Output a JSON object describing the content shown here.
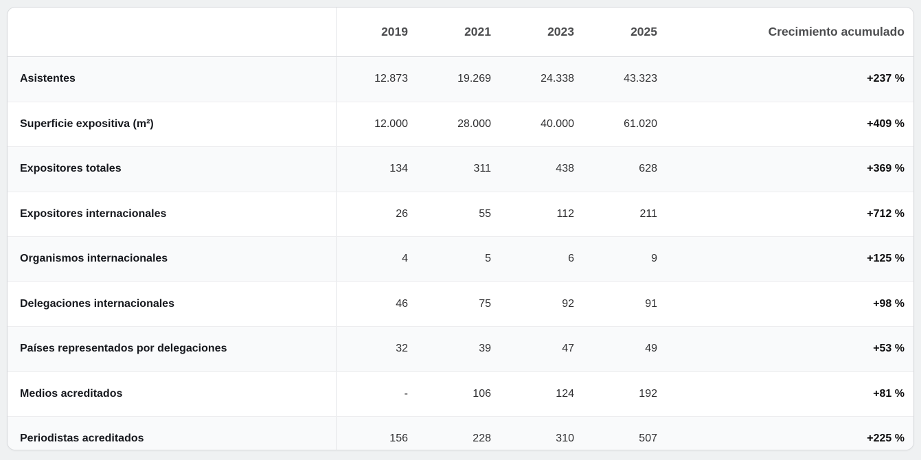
{
  "table": {
    "columns": [
      "",
      "2019",
      "2021",
      "2023",
      "2025",
      "Crecimiento acumulado"
    ],
    "rows": [
      {
        "label": "Asistentes",
        "values": [
          "12.873",
          "19.269",
          "24.338",
          "43.323"
        ],
        "growth": "+237 %"
      },
      {
        "label": "Superficie expositiva (m²)",
        "values": [
          "12.000",
          "28.000",
          "40.000",
          "61.020"
        ],
        "growth": "+409 %"
      },
      {
        "label": "Expositores totales",
        "values": [
          "134",
          "311",
          "438",
          "628"
        ],
        "growth": "+369 %"
      },
      {
        "label": "Expositores internacionales",
        "values": [
          "26",
          "55",
          "112",
          "211"
        ],
        "growth": "+712 %"
      },
      {
        "label": "Organismos internacionales",
        "values": [
          "4",
          "5",
          "6",
          "9"
        ],
        "growth": "+125 %"
      },
      {
        "label": "Delegaciones internacionales",
        "values": [
          "46",
          "75",
          "92",
          "91"
        ],
        "growth": "+98 %"
      },
      {
        "label": "Países representados por delegaciones",
        "values": [
          "32",
          "39",
          "47",
          "49"
        ],
        "growth": "+53 %"
      },
      {
        "label": "Medios acreditados",
        "values": [
          "-",
          "106",
          "124",
          "192"
        ],
        "growth": "+81 %"
      },
      {
        "label": "Periodistas acreditados",
        "values": [
          "156",
          "228",
          "310",
          "507"
        ],
        "growth": "+225 %"
      }
    ]
  },
  "chart_data": {
    "type": "table",
    "categories": [
      "2019",
      "2021",
      "2023",
      "2025"
    ],
    "growth_column_label": "Crecimiento acumulado",
    "series": [
      {
        "name": "Asistentes",
        "values": [
          12873,
          19269,
          24338,
          43323
        ],
        "growth_pct": 237
      },
      {
        "name": "Superficie expositiva (m²)",
        "values": [
          12000,
          28000,
          40000,
          61020
        ],
        "growth_pct": 409
      },
      {
        "name": "Expositores totales",
        "values": [
          134,
          311,
          438,
          628
        ],
        "growth_pct": 369
      },
      {
        "name": "Expositores internacionales",
        "values": [
          26,
          55,
          112,
          211
        ],
        "growth_pct": 712
      },
      {
        "name": "Organismos internacionales",
        "values": [
          4,
          5,
          6,
          9
        ],
        "growth_pct": 125
      },
      {
        "name": "Delegaciones internacionales",
        "values": [
          46,
          75,
          92,
          91
        ],
        "growth_pct": 98
      },
      {
        "name": "Países representados por delegaciones",
        "values": [
          32,
          39,
          47,
          49
        ],
        "growth_pct": 53
      },
      {
        "name": "Medios acreditados",
        "values": [
          null,
          106,
          124,
          192
        ],
        "growth_pct": 81
      },
      {
        "name": "Periodistas acreditados",
        "values": [
          156,
          228,
          310,
          507
        ],
        "growth_pct": 225
      }
    ]
  },
  "colors": {
    "page_background": "#eff1f2",
    "card_background": "#ffffff",
    "stripe_row": "#f9fafb",
    "header_text": "#4c4d4f",
    "label_text": "#16181d",
    "growth_text": "#0d0d0e",
    "divider": "#e4e6e8"
  }
}
